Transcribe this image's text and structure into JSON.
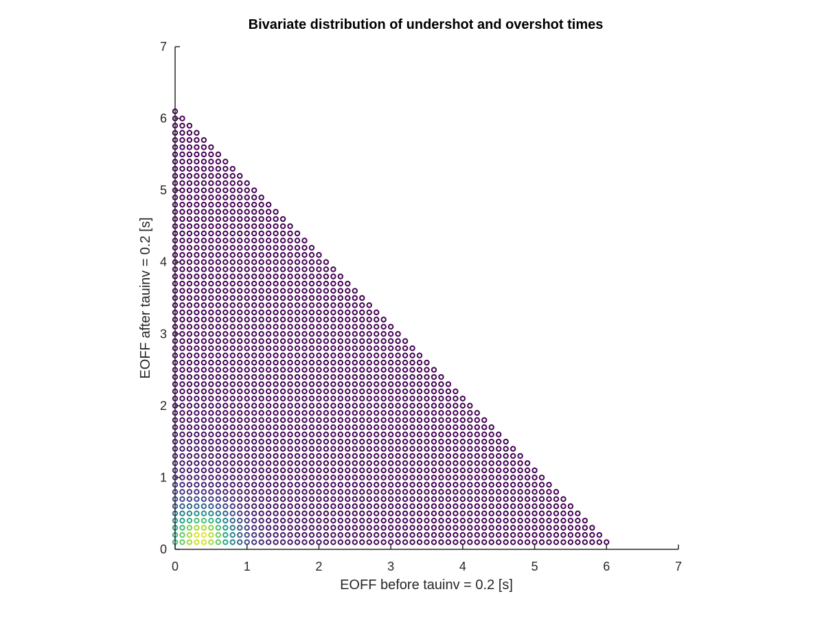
{
  "chart_data": {
    "type": "scatter",
    "title": "Bivariate distribution of undershot and overshot times",
    "xlabel": "EOFF before tauinv = 0.2 [s]",
    "ylabel": "EOFF after tauinv = 0.2 [s]",
    "xlim": [
      0,
      7
    ],
    "ylim": [
      0,
      7
    ],
    "xticks": [
      "0",
      "1",
      "2",
      "3",
      "4",
      "5",
      "6",
      "7"
    ],
    "yticks": [
      "0",
      "1",
      "2",
      "3",
      "4",
      "5",
      "6",
      "7"
    ],
    "marker": "circle",
    "colormap": "viridis",
    "grid": {
      "x_start": 0.0,
      "y_start": 0.1,
      "step": 0.1,
      "domain": "points where x >= 0, y >= 0.1 and x + y <= 6.1"
    },
    "density_peak": {
      "x": 0.4,
      "y": 0.2
    },
    "colors": {
      "low": "#440154",
      "mid": "#21918c",
      "high": "#fde725"
    }
  }
}
